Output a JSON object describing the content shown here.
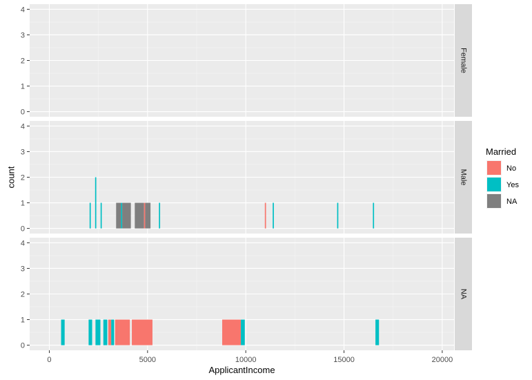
{
  "chart_data": {
    "type": "bar",
    "subtype": "histogram-faceted-stacked",
    "xlabel": "ApplicantIncome",
    "ylabel": "count",
    "xlim": [
      -1000,
      20600
    ],
    "ylim": [
      -0.2,
      4.2
    ],
    "x_ticks": [
      0,
      5000,
      10000,
      15000,
      20000
    ],
    "x_tick_labels": [
      "0",
      "5000",
      "10000",
      "15000",
      "20000"
    ],
    "y_ticks": [
      0,
      1,
      2,
      3,
      4
    ],
    "y_tick_labels": [
      "0",
      "1",
      "2",
      "3",
      "4"
    ],
    "grid": true,
    "legend": {
      "title": "Married",
      "position": "right",
      "entries": [
        {
          "label": "No",
          "color": "#F8766D"
        },
        {
          "label": "Yes",
          "color": "#00BFC4"
        },
        {
          "label": "NA",
          "color": "#7F7F7F"
        }
      ]
    },
    "facets": [
      {
        "label": "Female",
        "bars": []
      },
      {
        "label": "Male",
        "bars": [
          {
            "x0": 2050,
            "x1": 2110,
            "fill": "Yes",
            "y0": 0,
            "y1": 1
          },
          {
            "x0": 2330,
            "x1": 2390,
            "fill": "Yes",
            "y0": 0,
            "y1": 2
          },
          {
            "x0": 2610,
            "x1": 2670,
            "fill": "Yes",
            "y0": 0,
            "y1": 1
          },
          {
            "x0": 3400,
            "x1": 3650,
            "fill": "NA",
            "y0": 0,
            "y1": 1
          },
          {
            "x0": 3650,
            "x1": 3710,
            "fill": "Yes",
            "y0": 0,
            "y1": 1
          },
          {
            "x0": 3710,
            "x1": 4150,
            "fill": "NA",
            "y0": 0,
            "y1": 1
          },
          {
            "x0": 4350,
            "x1": 4820,
            "fill": "NA",
            "y0": 0,
            "y1": 1
          },
          {
            "x0": 4820,
            "x1": 4880,
            "fill": "No",
            "y0": 0,
            "y1": 1
          },
          {
            "x0": 4880,
            "x1": 5150,
            "fill": "NA",
            "y0": 0,
            "y1": 1
          },
          {
            "x0": 5580,
            "x1": 5640,
            "fill": "Yes",
            "y0": 0,
            "y1": 1
          },
          {
            "x0": 10970,
            "x1": 11030,
            "fill": "No",
            "y0": 0,
            "y1": 1
          },
          {
            "x0": 11370,
            "x1": 11430,
            "fill": "Yes",
            "y0": 0,
            "y1": 1
          },
          {
            "x0": 14650,
            "x1": 14710,
            "fill": "Yes",
            "y0": 0,
            "y1": 1
          },
          {
            "x0": 16470,
            "x1": 16530,
            "fill": "Yes",
            "y0": 0,
            "y1": 1
          }
        ]
      },
      {
        "label": "NA",
        "bars": [
          {
            "x0": 600,
            "x1": 780,
            "fill": "Yes",
            "y0": 0,
            "y1": 1
          },
          {
            "x0": 2000,
            "x1": 2180,
            "fill": "Yes",
            "y0": 0,
            "y1": 1
          },
          {
            "x0": 2350,
            "x1": 2600,
            "fill": "Yes",
            "y0": 0,
            "y1": 1
          },
          {
            "x0": 2750,
            "x1": 2950,
            "fill": "Yes",
            "y0": 0,
            "y1": 1
          },
          {
            "x0": 3000,
            "x1": 3150,
            "fill": "No",
            "y0": 0,
            "y1": 1
          },
          {
            "x0": 3150,
            "x1": 3300,
            "fill": "Yes",
            "y0": 0,
            "y1": 1
          },
          {
            "x0": 3350,
            "x1": 3550,
            "fill": "No",
            "y0": 0,
            "y1": 1
          },
          {
            "x0": 3550,
            "x1": 4100,
            "fill": "No",
            "y0": 0,
            "y1": 1
          },
          {
            "x0": 4200,
            "x1": 5250,
            "fill": "No",
            "y0": 0,
            "y1": 1
          },
          {
            "x0": 8800,
            "x1": 9750,
            "fill": "No",
            "y0": 0,
            "y1": 1
          },
          {
            "x0": 9750,
            "x1": 9950,
            "fill": "Yes",
            "y0": 0,
            "y1": 1
          },
          {
            "x0": 16600,
            "x1": 16780,
            "fill": "Yes",
            "y0": 0,
            "y1": 1
          }
        ]
      }
    ]
  }
}
